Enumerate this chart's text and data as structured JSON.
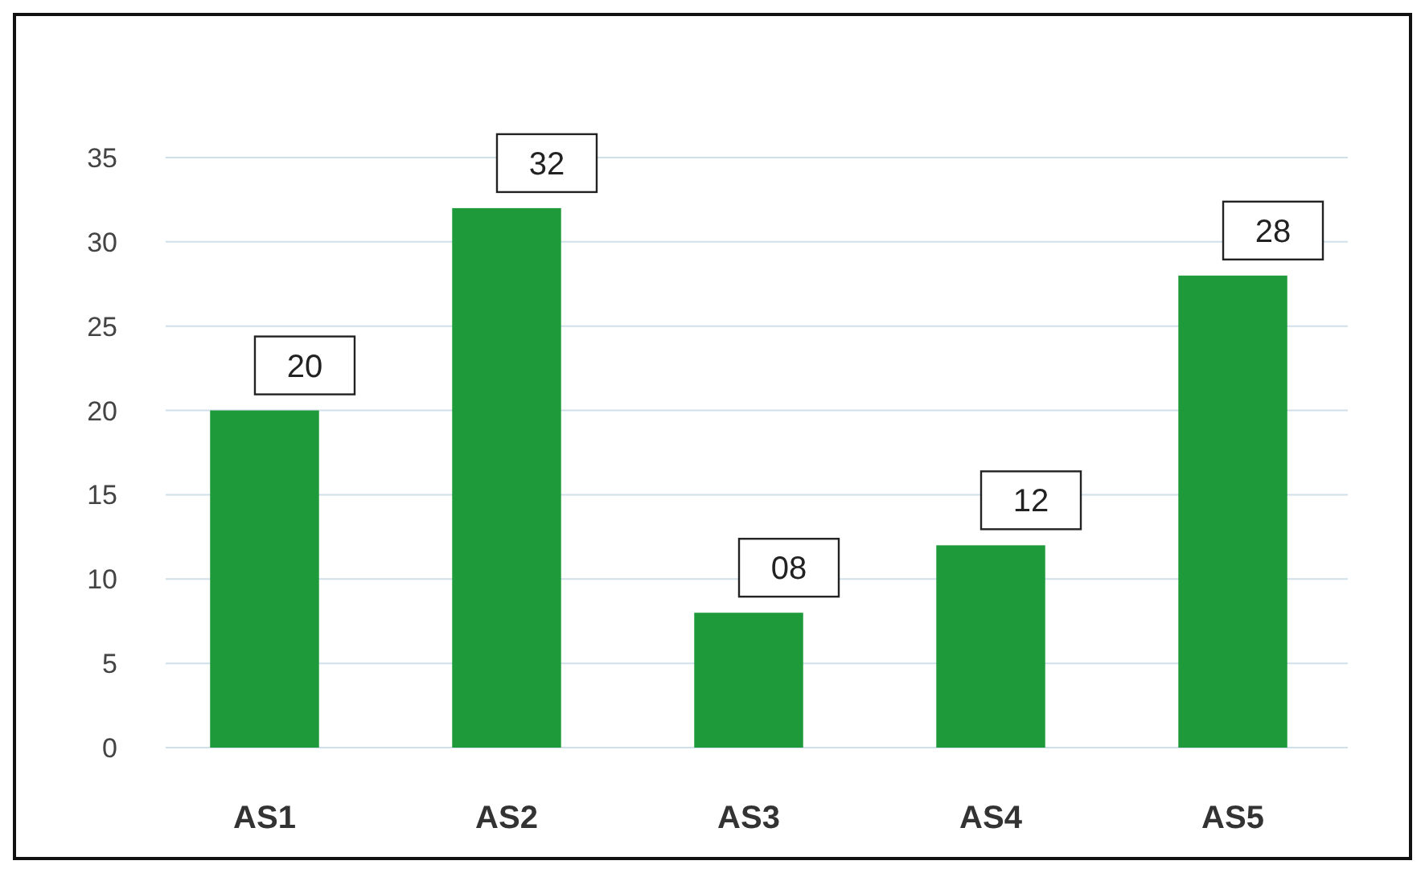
{
  "chart_data": {
    "type": "bar",
    "categories": [
      "AS1",
      "AS2",
      "AS3",
      "AS4",
      "AS5"
    ],
    "values": [
      20,
      32,
      8,
      12,
      28
    ],
    "value_labels": [
      "20",
      "32",
      "08",
      "12",
      "28"
    ],
    "color": "#1f9a3a",
    "ylim": [
      0,
      35
    ],
    "yticks": [
      0,
      5,
      10,
      15,
      20,
      25,
      30,
      35
    ],
    "grid": "y"
  }
}
